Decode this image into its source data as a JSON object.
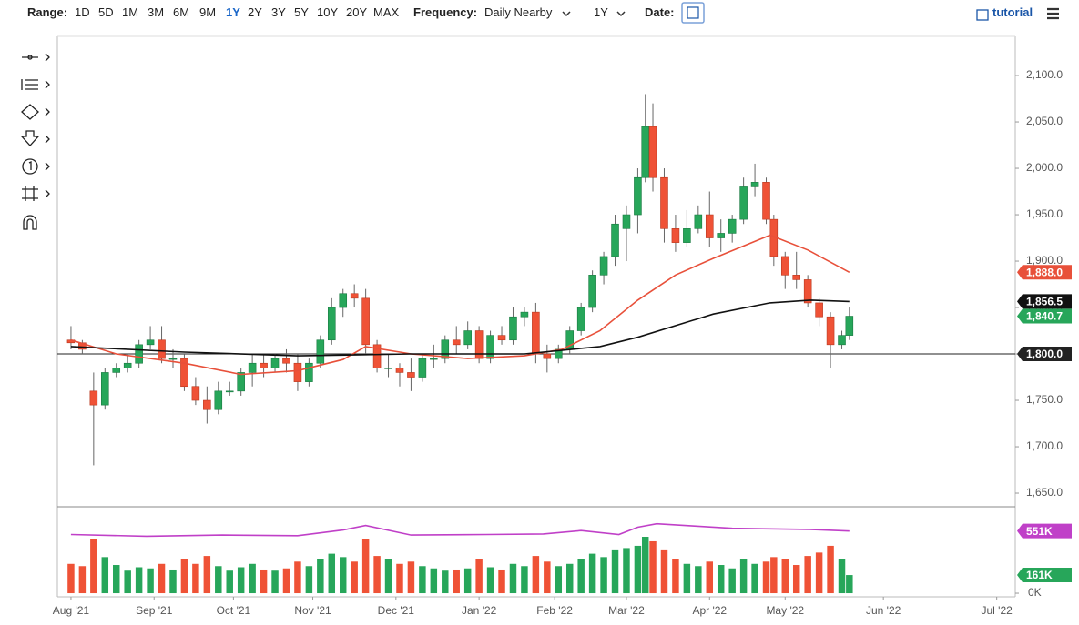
{
  "toolbar": {
    "range_label": "Range:",
    "ranges": [
      "1D",
      "5D",
      "1M",
      "3M",
      "6M",
      "9M",
      "1Y",
      "2Y",
      "3Y",
      "5Y",
      "10Y",
      "20Y",
      "MAX"
    ],
    "active_range_index": 6,
    "frequency_label": "Frequency:",
    "frequency": "Daily Nearby",
    "period": "1Y",
    "date_label": "Date:",
    "tutorial": "tutorial"
  },
  "chart_data": {
    "type": "candlestick",
    "x": [
      0,
      3,
      6,
      9,
      12,
      15,
      18,
      21,
      24,
      27,
      30,
      33,
      36,
      39,
      42,
      45,
      48,
      51,
      54,
      57,
      60,
      63,
      66,
      69,
      72,
      75,
      78,
      81,
      84,
      87,
      90,
      93,
      96,
      99,
      102,
      105,
      108,
      111,
      114,
      117,
      120,
      123,
      126,
      129,
      132,
      135,
      138,
      141,
      144,
      147,
      150,
      152,
      154,
      157,
      160,
      163,
      166,
      169,
      172,
      175,
      178,
      181,
      184,
      186,
      189,
      192,
      195,
      198,
      201,
      204,
      206
    ],
    "open": [
      1815,
      1812,
      1760,
      1745,
      1780,
      1785,
      1790,
      1810,
      1815,
      1795,
      1795,
      1765,
      1750,
      1740,
      1760,
      1760,
      1780,
      1790,
      1785,
      1795,
      1790,
      1770,
      1790,
      1815,
      1850,
      1865,
      1860,
      1810,
      1785,
      1785,
      1780,
      1775,
      1795,
      1795,
      1815,
      1810,
      1825,
      1795,
      1820,
      1815,
      1840,
      1845,
      1800,
      1795,
      1805,
      1825,
      1850,
      1885,
      1905,
      1935,
      1950,
      1990,
      2045,
      1990,
      1935,
      1920,
      1935,
      1950,
      1925,
      1930,
      1945,
      1980,
      1985,
      1945,
      1905,
      1885,
      1880,
      1855,
      1840,
      1810,
      1820
    ],
    "high": [
      1830,
      1815,
      1780,
      1785,
      1790,
      1800,
      1815,
      1830,
      1830,
      1805,
      1800,
      1775,
      1765,
      1770,
      1770,
      1785,
      1800,
      1800,
      1800,
      1805,
      1800,
      1795,
      1820,
      1860,
      1870,
      1875,
      1870,
      1815,
      1800,
      1790,
      1795,
      1800,
      1810,
      1820,
      1830,
      1835,
      1830,
      1825,
      1830,
      1850,
      1850,
      1855,
      1810,
      1810,
      1830,
      1855,
      1890,
      1910,
      1950,
      1960,
      2000,
      2080,
      2070,
      2000,
      1950,
      1955,
      1960,
      1975,
      1945,
      1950,
      1990,
      2005,
      1990,
      1950,
      1910,
      1910,
      1885,
      1860,
      1845,
      1825,
      1850
    ],
    "low": [
      1805,
      1800,
      1680,
      1740,
      1775,
      1780,
      1785,
      1805,
      1790,
      1785,
      1760,
      1745,
      1725,
      1735,
      1755,
      1755,
      1765,
      1775,
      1780,
      1780,
      1760,
      1765,
      1785,
      1810,
      1840,
      1850,
      1800,
      1780,
      1775,
      1765,
      1760,
      1770,
      1785,
      1790,
      1800,
      1805,
      1790,
      1790,
      1810,
      1810,
      1830,
      1790,
      1780,
      1790,
      1800,
      1820,
      1845,
      1875,
      1895,
      1900,
      1930,
      1985,
      1975,
      1920,
      1910,
      1915,
      1930,
      1915,
      1910,
      1920,
      1940,
      1970,
      1940,
      1895,
      1870,
      1870,
      1850,
      1830,
      1785,
      1805,
      1815
    ],
    "close": [
      1812,
      1805,
      1745,
      1780,
      1785,
      1790,
      1810,
      1815,
      1795,
      1795,
      1765,
      1750,
      1740,
      1760,
      1760,
      1780,
      1790,
      1785,
      1795,
      1790,
      1770,
      1790,
      1815,
      1850,
      1865,
      1860,
      1810,
      1785,
      1785,
      1780,
      1775,
      1795,
      1795,
      1815,
      1810,
      1825,
      1795,
      1820,
      1815,
      1840,
      1845,
      1800,
      1795,
      1805,
      1825,
      1850,
      1885,
      1905,
      1940,
      1950,
      1990,
      2045,
      1990,
      1935,
      1920,
      1935,
      1950,
      1925,
      1930,
      1945,
      1980,
      1985,
      1945,
      1905,
      1885,
      1880,
      1855,
      1840,
      1810,
      1820,
      1840.7
    ],
    "last_close_label": "1,840.7",
    "up_color": "#27a65a",
    "down_color": "#ef5236",
    "xlim": [
      -3.6,
      249.9
    ],
    "xticks": [
      {
        "value": 0,
        "label": "Aug '21"
      },
      {
        "value": 22,
        "label": "Sep '21"
      },
      {
        "value": 43,
        "label": "Oct '21"
      },
      {
        "value": 64,
        "label": "Nov '21"
      },
      {
        "value": 86,
        "label": "Dec '21"
      },
      {
        "value": 108,
        "label": "Jan '22"
      },
      {
        "value": 128,
        "label": "Feb '22"
      },
      {
        "value": 147,
        "label": "Mar '22"
      },
      {
        "value": 169,
        "label": "Apr '22"
      },
      {
        "value": 189,
        "label": "May '22"
      },
      {
        "value": 215,
        "label": "Jun '22"
      },
      {
        "value": 245,
        "label": "Jul '22"
      }
    ],
    "ylim": [
      1636.3,
      2142.2
    ],
    "yticks": [
      {
        "value": 1650,
        "label": "1,650.0"
      },
      {
        "value": 1700,
        "label": "1,700.0"
      },
      {
        "value": 1750,
        "label": "1,750.0"
      },
      {
        "value": 1800,
        "label": "1,800.0"
      },
      {
        "value": 1850,
        "label": "1,850.0"
      },
      {
        "value": 1900,
        "label": "1,900.0"
      },
      {
        "value": 1950,
        "label": "1,950.0"
      },
      {
        "value": 2000,
        "label": "2,000.0"
      },
      {
        "value": 2050,
        "label": "2,050.0"
      },
      {
        "value": 2100,
        "label": "2,100.0"
      }
    ],
    "hline": {
      "value": 1800,
      "label": "1,800.0",
      "color": "#222222"
    },
    "lines": [
      {
        "color": "#e8503a",
        "x": [
          0,
          12,
          30,
          45,
          60,
          72,
          78,
          90,
          105,
          120,
          130,
          140,
          150,
          160,
          170,
          185,
          195,
          206
        ],
        "values": [
          1815,
          1800,
          1790,
          1778,
          1782,
          1794,
          1808,
          1800,
          1795,
          1798,
          1805,
          1825,
          1858,
          1885,
          1903,
          1928,
          1912,
          1888
        ],
        "end_label": "1,888.0"
      },
      {
        "color": "#111111",
        "x": [
          0,
          30,
          60,
          90,
          120,
          140,
          150,
          170,
          185,
          196,
          206
        ],
        "values": [
          1808,
          1802,
          1798,
          1800,
          1800,
          1808,
          1818,
          1843,
          1855,
          1858,
          1856.5
        ],
        "end_label": "1,856.5"
      }
    ],
    "volume": {
      "values": [
        260,
        240,
        480,
        320,
        250,
        200,
        230,
        220,
        260,
        210,
        300,
        260,
        330,
        240,
        200,
        230,
        260,
        210,
        200,
        220,
        280,
        240,
        300,
        350,
        320,
        280,
        480,
        330,
        300,
        260,
        280,
        240,
        220,
        200,
        210,
        220,
        300,
        230,
        210,
        260,
        240,
        330,
        280,
        240,
        260,
        300,
        350,
        320,
        380,
        400,
        420,
        500,
        460,
        380,
        300,
        260,
        240,
        280,
        250,
        220,
        300,
        260,
        280,
        320,
        300,
        250,
        330,
        360,
        420,
        300,
        161
      ],
      "last_label": "161K",
      "ylim": [
        -32,
        758
      ],
      "yticks": [
        {
          "value": 0,
          "label": "0K"
        }
      ],
      "ma": {
        "color": "#c040c8",
        "x": [
          0,
          20,
          40,
          60,
          72,
          78,
          90,
          110,
          125,
          135,
          145,
          150,
          155,
          165,
          175,
          185,
          195,
          206
        ],
        "values": [
          520,
          505,
          515,
          510,
          560,
          600,
          515,
          520,
          525,
          555,
          520,
          585,
          615,
          595,
          575,
          570,
          565,
          551
        ],
        "end_label": "551K"
      }
    }
  }
}
